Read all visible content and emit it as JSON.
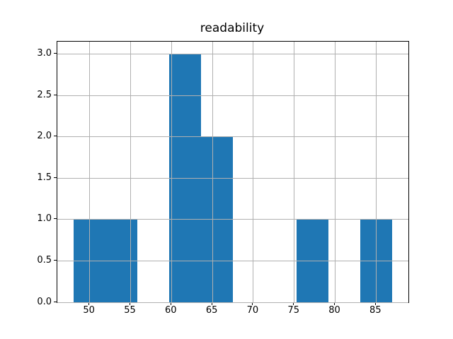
{
  "chart_data": {
    "type": "bar",
    "subtype": "histogram",
    "title": "readability",
    "xlabel": "",
    "ylabel": "",
    "bin_edges": [
      48.0,
      51.9,
      55.8,
      59.7,
      63.6,
      67.5,
      71.4,
      75.3,
      79.2,
      83.1,
      87.0
    ],
    "counts": [
      1,
      1,
      0,
      3,
      2,
      0,
      0,
      1,
      0,
      1
    ],
    "xlim": [
      46.05,
      88.95
    ],
    "ylim": [
      0,
      3.15
    ],
    "x_ticks": [
      50,
      55,
      60,
      65,
      70,
      75,
      80,
      85
    ],
    "x_tick_labels": [
      "50",
      "55",
      "60",
      "65",
      "70",
      "75",
      "80",
      "85"
    ],
    "y_ticks": [
      0.0,
      0.5,
      1.0,
      1.5,
      2.0,
      2.5,
      3.0
    ],
    "y_tick_labels": [
      "0.0",
      "0.5",
      "1.0",
      "1.5",
      "2.0",
      "2.5",
      "3.0"
    ],
    "grid": true,
    "legend": null,
    "colors": {
      "bar": "#1f77b4",
      "grid": "#b0b0b0",
      "spine": "#000000",
      "text": "#000000"
    }
  }
}
